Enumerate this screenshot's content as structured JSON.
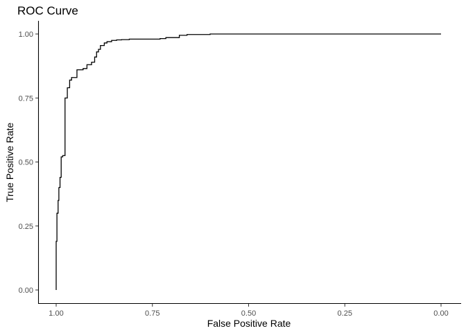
{
  "chart_data": {
    "type": "line",
    "title": "ROC Curve",
    "xlabel": "False Positive Rate",
    "ylabel": "True Positive Rate",
    "x_reversed": true,
    "xlim": [
      1.0,
      0.0
    ],
    "ylim": [
      0.0,
      1.0
    ],
    "x_ticks": [
      1.0,
      0.75,
      0.5,
      0.25,
      0.0
    ],
    "x_tick_labels": [
      "1.00",
      "0.75",
      "0.50",
      "0.25",
      "0.00"
    ],
    "y_ticks": [
      0.0,
      0.25,
      0.5,
      0.75,
      1.0
    ],
    "y_tick_labels": [
      "0.00",
      "0.25",
      "0.50",
      "0.75",
      "1.00"
    ],
    "grid": false,
    "legend": "none",
    "series": [
      {
        "x": [
          1.0,
          1.0,
          0.998,
          0.998,
          0.995,
          0.995,
          0.993,
          0.993,
          0.99,
          0.99,
          0.987,
          0.987,
          0.983,
          0.983,
          0.977,
          0.977,
          0.971,
          0.971,
          0.965,
          0.965,
          0.96,
          0.96,
          0.946,
          0.946,
          0.93,
          0.93,
          0.92,
          0.92,
          0.908,
          0.908,
          0.9,
          0.9,
          0.895,
          0.895,
          0.89,
          0.89,
          0.885,
          0.885,
          0.875,
          0.875,
          0.868,
          0.868,
          0.856,
          0.856,
          0.843,
          0.843,
          0.83,
          0.83,
          0.81,
          0.81,
          0.73,
          0.73,
          0.715,
          0.715,
          0.68,
          0.68,
          0.66,
          0.66,
          0.6,
          0.6,
          0.0
        ],
        "y": [
          0.0,
          0.19,
          0.19,
          0.3,
          0.3,
          0.35,
          0.35,
          0.4,
          0.4,
          0.44,
          0.44,
          0.52,
          0.52,
          0.525,
          0.525,
          0.75,
          0.75,
          0.79,
          0.79,
          0.82,
          0.82,
          0.83,
          0.83,
          0.86,
          0.86,
          0.865,
          0.865,
          0.88,
          0.88,
          0.89,
          0.89,
          0.91,
          0.91,
          0.93,
          0.93,
          0.94,
          0.94,
          0.955,
          0.955,
          0.965,
          0.965,
          0.97,
          0.97,
          0.975,
          0.975,
          0.977,
          0.977,
          0.978,
          0.978,
          0.98,
          0.98,
          0.982,
          0.982,
          0.986,
          0.986,
          0.995,
          0.995,
          0.998,
          0.998,
          1.0,
          1.0
        ]
      }
    ]
  }
}
